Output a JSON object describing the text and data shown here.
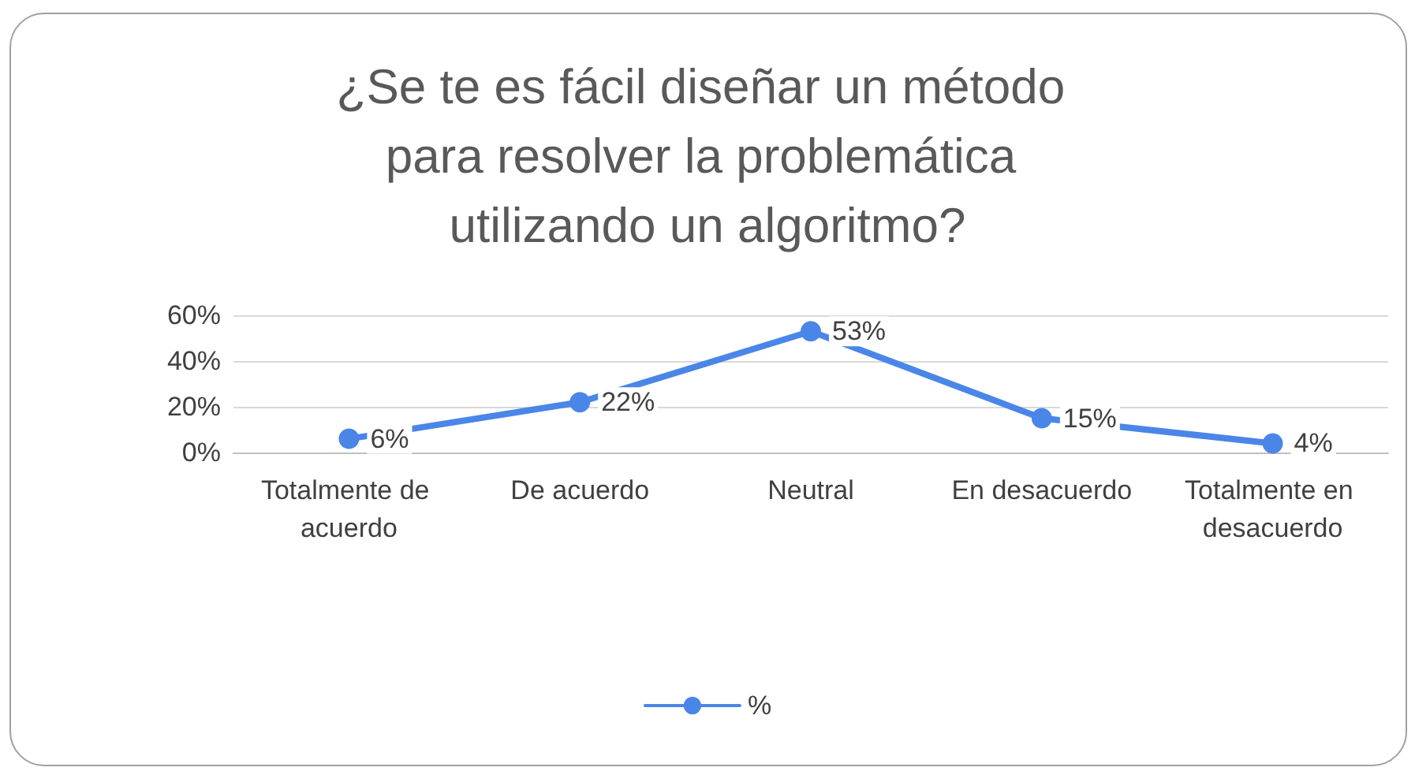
{
  "chart_data": {
    "type": "line",
    "title": "¿Se te es fácil diseñar un método para resolver la problemática utilizando un algoritmo?",
    "categories": [
      "Totalmente de acuerdo",
      "De acuerdo",
      "Neutral",
      "En desacuerdo",
      "Totalmente en desacuerdo"
    ],
    "series": [
      {
        "name": "%",
        "color": "#4a86e8",
        "values": [
          6,
          22,
          53,
          15,
          4
        ],
        "value_labels": [
          "6%",
          "22%",
          "53%",
          "15%",
          "4%"
        ]
      }
    ],
    "ylim": [
      0,
      60
    ],
    "yticks": [
      {
        "value": 0,
        "label": "0%"
      },
      {
        "value": 20,
        "label": "20%"
      },
      {
        "value": 40,
        "label": "40%"
      },
      {
        "value": 60,
        "label": "60%"
      }
    ],
    "grid": "y",
    "legend": "bottom",
    "marker": "circle",
    "line_style": "solid"
  }
}
